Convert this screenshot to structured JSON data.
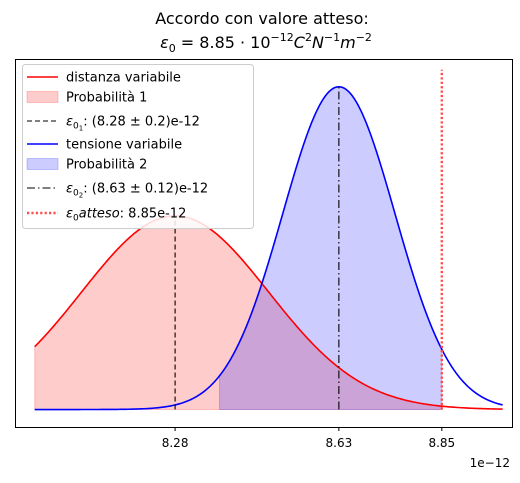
{
  "chart_data": {
    "type": "area",
    "title": "Accordo con valore atteso:",
    "subtitle": {
      "lead": "ε",
      "lead_sub": "0",
      "eq": " = 8.85 · 10",
      "exp": "−12",
      "c": "C",
      "c_exp": "2",
      "n": "N",
      "n_exp": "−1",
      "m": "m",
      "m_exp": "−2"
    },
    "xlabel": "",
    "ylabel": "",
    "x_scale_label": "1e−12",
    "xlim": [
      7.94,
      9.0
    ],
    "ylim": [
      -0.18,
      3.6
    ],
    "x_ticks": [
      {
        "value": 8.28,
        "label": "8.28"
      },
      {
        "value": 8.63,
        "label": "8.63"
      },
      {
        "value": 8.85,
        "label": "8.85"
      }
    ],
    "series": [
      {
        "name": "distanza variabile",
        "kind": "normal_pdf",
        "mean": 8.28,
        "sigma": 0.2,
        "x_range": [
          7.98,
          8.98
        ],
        "color": "#ff0000"
      },
      {
        "name": "tensione variabile",
        "kind": "normal_pdf",
        "mean": 8.63,
        "sigma": 0.12,
        "x_range": [
          7.98,
          8.98
        ],
        "color": "#0000ff"
      }
    ],
    "fills": [
      {
        "name": "Probabilità 1",
        "of_series": "distanza variabile",
        "from": 7.98,
        "to": 8.85,
        "color": "#ff0000",
        "alpha": 0.2
      },
      {
        "name": "Probabilità 2",
        "of_series": "tensione variabile",
        "from": 8.375,
        "to": 8.85,
        "color": "#0000ff",
        "alpha": 0.2
      }
    ],
    "vlines": [
      {
        "x": 8.28,
        "style": "dashed",
        "color": "#000000",
        "label_sym": "ε",
        "label_sub": "0",
        "label_subsub": "1",
        "label_rest": ": (8.28 ± 0.2)e-12"
      },
      {
        "x": 8.63,
        "style": "dashdot",
        "color": "#000000",
        "label_sym": "ε",
        "label_sub": "0",
        "label_subsub": "2",
        "label_rest": ": (8.63 ± 0.12)e-12"
      },
      {
        "x": 8.85,
        "style": "dotted",
        "color": "#ff4d4d",
        "label_sym": "ε",
        "label_sub": "0",
        "label_italic": "atteso",
        "label_rest": ": 8.85e-12"
      }
    ],
    "legend": {
      "placement": "top-left",
      "entries": [
        {
          "text": "distanza variabile",
          "kind": "line",
          "color": "#ff0000",
          "dash": "solid"
        },
        {
          "text": "Probabilità 1",
          "kind": "patch",
          "color": "#ff0000",
          "alpha": 0.2
        },
        {
          "kind": "line",
          "color": "#000000",
          "dash": "dashed",
          "vline": 0
        },
        {
          "text": "tensione variabile",
          "kind": "line",
          "color": "#0000ff",
          "dash": "solid"
        },
        {
          "text": "Probabilità 2",
          "kind": "patch",
          "color": "#0000ff",
          "alpha": 0.2
        },
        {
          "kind": "line",
          "color": "#000000",
          "dash": "dashdot",
          "vline": 1
        },
        {
          "kind": "line",
          "color": "#ff4d4d",
          "dash": "dotted",
          "vline": 2
        }
      ]
    },
    "grid": false
  }
}
